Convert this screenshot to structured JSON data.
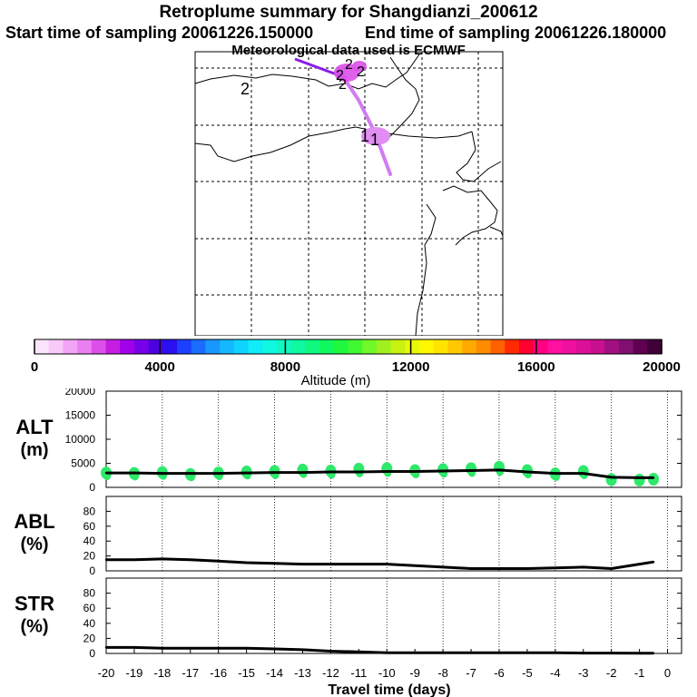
{
  "header": {
    "title": "Retroplume summary for Shangdianzi_200612",
    "start": "Start time of sampling 20061226.150000",
    "end": "End time of sampling 20061226.180000",
    "met": "Meteorological data used is ECMWF"
  },
  "map": {
    "labels": [
      "2",
      "2",
      "2",
      "2",
      "2",
      "1",
      "1"
    ]
  },
  "colorbar": {
    "title": "Altitude (m)",
    "tick_labels": [
      "0",
      "4000",
      "8000",
      "12000",
      "16000",
      "20000"
    ],
    "colors": [
      "#fde4fd",
      "#f9c9fa",
      "#f2a4f5",
      "#e97ff0",
      "#dc4fea",
      "#c61de3",
      "#a100e8",
      "#7600e8",
      "#4d00e0",
      "#2a10f0",
      "#1b40ff",
      "#1a6cff",
      "#1a96ff",
      "#14b8ff",
      "#10d4ff",
      "#10ecf8",
      "#10f8e0",
      "#10f8c0",
      "#10f8a0",
      "#10f880",
      "#10f860",
      "#20f840",
      "#40f830",
      "#70f828",
      "#a0f020",
      "#c8f010",
      "#e8f808",
      "#fff800",
      "#ffe400",
      "#ffc800",
      "#ffaa00",
      "#ff8c00",
      "#ff6000",
      "#ff2a00",
      "#ff0030",
      "#ff0080",
      "#ff10a0",
      "#f010a0",
      "#dc1098",
      "#c81090",
      "#a01080",
      "#801070",
      "#600050",
      "#400038"
    ]
  },
  "chart_data": [
    {
      "type": "line",
      "name": "ALT",
      "ylabel": "ALT\n(m)",
      "ylabel_lines": [
        "ALT",
        "(m)"
      ],
      "x": [
        -20,
        -19,
        -18,
        -17,
        -16,
        -15,
        -14,
        -13,
        -12,
        -11,
        -10,
        -9,
        -8,
        -7,
        -6,
        -5,
        -4,
        -3,
        -2,
        -1,
        -0.5
      ],
      "values": [
        3000,
        3000,
        2900,
        2900,
        2900,
        3000,
        3100,
        3100,
        3200,
        3200,
        3300,
        3300,
        3400,
        3500,
        3600,
        3200,
        2900,
        2900,
        2100,
        2000,
        2000
      ],
      "scatter_y": [
        3000,
        2900,
        3100,
        2700,
        3000,
        3200,
        3300,
        3600,
        3400,
        3800,
        3900,
        3500,
        3700,
        3900,
        4200,
        3500,
        2800,
        3300,
        1600,
        1500,
        1700
      ],
      "ylim": [
        0,
        20000
      ],
      "yticks": [
        "0",
        "5000",
        "10000",
        "15000",
        "20000"
      ]
    },
    {
      "type": "line",
      "name": "ABL",
      "ylabel_lines": [
        "ABL",
        "(%)"
      ],
      "x": [
        -20,
        -19,
        -18,
        -17,
        -16,
        -15,
        -14,
        -13,
        -12,
        -11,
        -10,
        -9,
        -8,
        -7,
        -6,
        -5,
        -4,
        -3,
        -2,
        -1,
        -0.5
      ],
      "values": [
        15,
        15,
        16,
        15,
        13,
        11,
        10,
        9,
        9,
        9,
        9,
        7,
        5,
        3,
        3,
        3,
        4,
        5,
        3,
        9,
        12
      ],
      "ylim": [
        0,
        100
      ],
      "yticks": [
        "0",
        "20",
        "40",
        "60",
        "80"
      ]
    },
    {
      "type": "line",
      "name": "STR",
      "ylabel_lines": [
        "STR",
        "(%)"
      ],
      "x": [
        -20,
        -19,
        -18,
        -17,
        -16,
        -15,
        -14,
        -13,
        -12,
        -11,
        -10,
        -9,
        -8,
        -7,
        -6,
        -5,
        -4,
        -3,
        -2,
        -1,
        -0.5
      ],
      "values": [
        8,
        8,
        7,
        7,
        7,
        7,
        6,
        5,
        3,
        2,
        1,
        1,
        1,
        1,
        1,
        1,
        1,
        0.5,
        0.5,
        0.3,
        0.3
      ],
      "ylim": [
        0,
        100
      ],
      "yticks": [
        "0",
        "20",
        "40",
        "60",
        "80"
      ],
      "xlabel": "Travel time (days)",
      "xticks": [
        "-20",
        "-19",
        "-18",
        "-17",
        "-16",
        "-15",
        "-14",
        "-13",
        "-12",
        "-11",
        "-10",
        "-9",
        "-8",
        "-7",
        "-6",
        "-5",
        "-4",
        "-3",
        "-2",
        "-1",
        "0"
      ]
    }
  ]
}
